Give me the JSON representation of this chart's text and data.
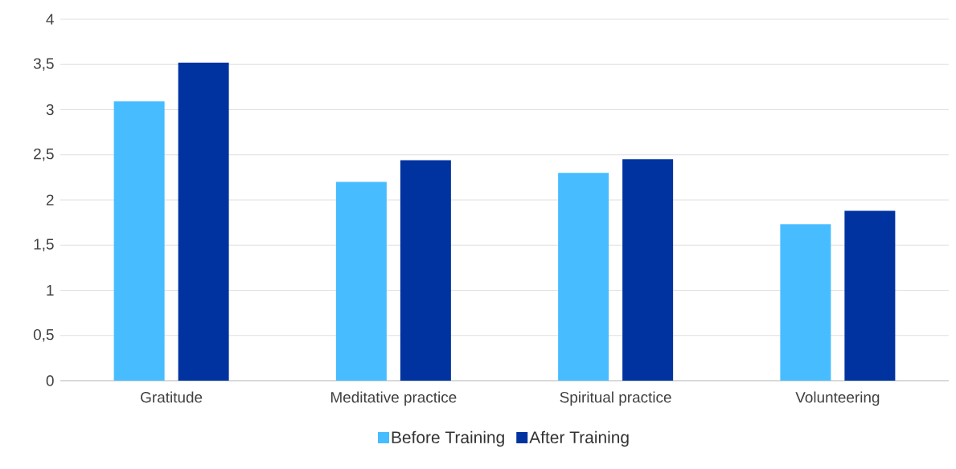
{
  "chart_data": {
    "type": "bar",
    "categories": [
      "Gratitude",
      "Meditative practice",
      "Spiritual practice",
      "Volunteering"
    ],
    "series": [
      {
        "name": "Before Training",
        "color": "#47bdff",
        "values": [
          3.09,
          2.2,
          2.3,
          1.73
        ]
      },
      {
        "name": "After Training",
        "color": "#0033a0",
        "values": [
          3.52,
          2.44,
          2.45,
          1.88
        ]
      }
    ],
    "ylim": [
      0,
      4
    ],
    "yticks": [
      0,
      {
        "value": 0.5,
        "label": "0,5"
      },
      1,
      {
        "value": 1.5,
        "label": "1,5"
      },
      2,
      {
        "value": 2.5,
        "label": "2,5"
      },
      3,
      {
        "value": 3.5,
        "label": "3,5"
      },
      4
    ],
    "grid": "y",
    "legend": "bottom"
  }
}
